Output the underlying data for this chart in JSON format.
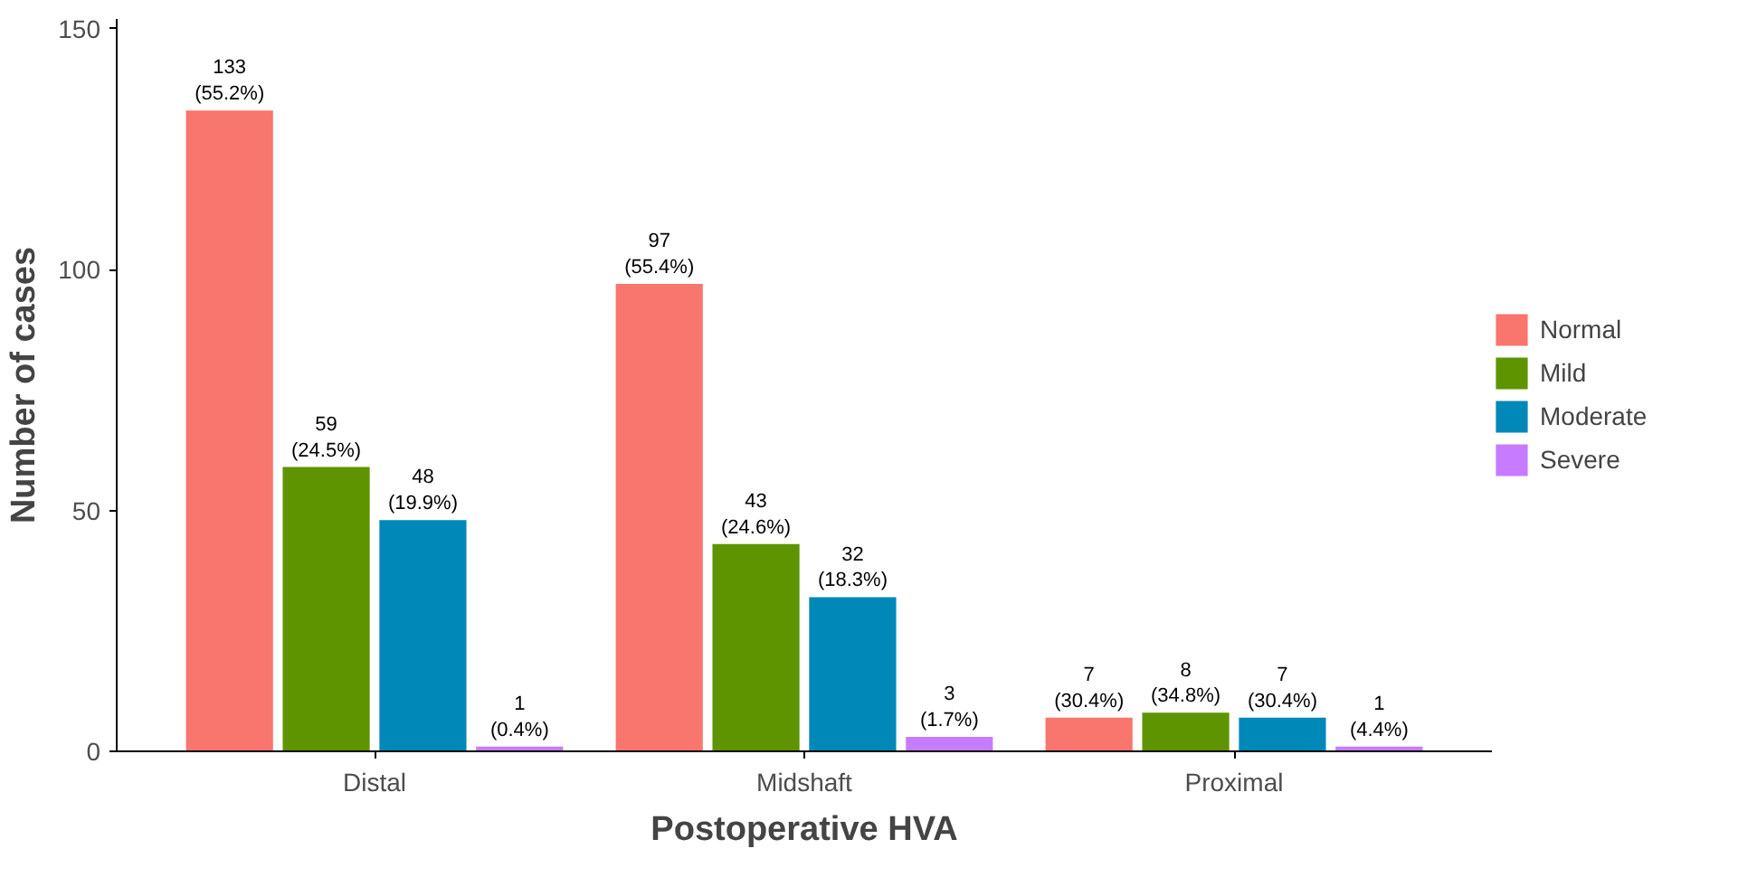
{
  "chart_data": {
    "type": "bar",
    "xlabel": "Postoperative HVA",
    "ylabel": "Number of cases",
    "categories": [
      "Distal",
      "Midshaft",
      "Proximal"
    ],
    "series": [
      {
        "name": "Normal",
        "color": "#f8766d",
        "values": [
          133,
          97,
          7
        ],
        "value_labels": [
          "133\n(55.2%)",
          "97\n(55.4%)",
          "7\n(30.4%)"
        ]
      },
      {
        "name": "Mild",
        "color": "#5e9400",
        "values": [
          59,
          43,
          8
        ],
        "value_labels": [
          "59\n(24.5%)",
          "43\n(24.6%)",
          "8\n(34.8%)"
        ]
      },
      {
        "name": "Moderate",
        "color": "#0089b8",
        "values": [
          48,
          32,
          7
        ],
        "value_labels": [
          "48\n(19.9%)",
          "32\n(18.3%)",
          "7\n(30.4%)"
        ]
      },
      {
        "name": "Severe",
        "color": "#c77cff",
        "values": [
          1,
          3,
          1
        ],
        "value_labels": [
          "1\n(0.4%)",
          "3\n(1.7%)",
          "1\n(4.4%)"
        ]
      }
    ],
    "ylim": [
      0,
      152
    ],
    "yticks": [
      0,
      50,
      100,
      150
    ],
    "grid": false,
    "legend": "right"
  }
}
